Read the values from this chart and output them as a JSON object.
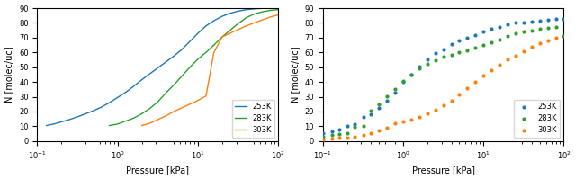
{
  "left": {
    "blue": {
      "pressure": [
        0.13,
        0.16,
        0.2,
        0.25,
        0.32,
        0.4,
        0.5,
        0.63,
        0.79,
        1.0,
        1.26,
        1.58,
        2.0,
        2.51,
        3.16,
        3.98,
        5.01,
        6.31,
        7.94,
        10.0,
        12.6,
        15.8,
        20.0,
        25.1,
        31.6,
        39.8,
        50.1,
        63.1,
        79.4,
        100.0
      ],
      "N": [
        10.5,
        11.5,
        13.0,
        14.5,
        16.5,
        18.5,
        20.5,
        23.0,
        26.0,
        29.5,
        33.0,
        37.0,
        41.5,
        45.5,
        49.5,
        53.5,
        57.5,
        62.0,
        67.5,
        73.0,
        78.0,
        81.5,
        84.5,
        86.5,
        88.0,
        89.0,
        89.5,
        90.0,
        90.0,
        90.0
      ]
    },
    "green": {
      "pressure": [
        0.79,
        1.0,
        1.26,
        1.58,
        2.0,
        2.51,
        3.16,
        3.98,
        5.01,
        6.31,
        7.94,
        10.0,
        12.6,
        15.8,
        20.0,
        25.1,
        31.6,
        39.8,
        50.1,
        63.1,
        79.4,
        100.0
      ],
      "N": [
        10.5,
        11.5,
        13.5,
        15.5,
        18.5,
        22.0,
        26.5,
        32.5,
        38.0,
        44.0,
        50.0,
        55.5,
        60.0,
        65.0,
        70.5,
        75.0,
        79.5,
        83.5,
        86.0,
        87.5,
        88.5,
        89.0
      ]
    },
    "orange": {
      "pressure": [
        2.0,
        2.51,
        3.16,
        3.98,
        5.01,
        6.31,
        7.94,
        10.0,
        12.6,
        15.8,
        20.0,
        25.1,
        31.6,
        39.8,
        50.1,
        63.1,
        79.4,
        100.0
      ],
      "N": [
        10.5,
        12.0,
        14.5,
        17.0,
        20.0,
        22.5,
        25.0,
        27.5,
        30.5,
        60.0,
        70.5,
        73.0,
        75.5,
        78.0,
        80.0,
        82.0,
        84.0,
        85.5
      ]
    }
  },
  "right": {
    "blue": {
      "pressure": [
        0.1,
        0.13,
        0.16,
        0.2,
        0.25,
        0.32,
        0.4,
        0.5,
        0.63,
        0.79,
        1.0,
        1.26,
        1.58,
        2.0,
        2.51,
        3.16,
        3.98,
        5.01,
        6.31,
        7.94,
        10.0,
        12.6,
        15.8,
        20.0,
        25.1,
        31.6,
        39.8,
        50.1,
        63.1,
        79.4,
        100.0
      ],
      "N": [
        5.5,
        6.5,
        7.5,
        10.5,
        11.5,
        16.5,
        18.0,
        22.5,
        27.5,
        33.0,
        40.0,
        45.0,
        50.5,
        55.0,
        59.5,
        62.0,
        65.5,
        68.0,
        70.0,
        72.0,
        74.0,
        76.0,
        77.5,
        79.0,
        80.0,
        80.5,
        81.0,
        81.5,
        82.0,
        82.5,
        83.0
      ]
    },
    "green": {
      "pressure": [
        0.1,
        0.13,
        0.16,
        0.2,
        0.25,
        0.32,
        0.4,
        0.5,
        0.63,
        0.79,
        1.0,
        1.26,
        1.58,
        2.0,
        2.51,
        3.16,
        3.98,
        5.01,
        6.31,
        7.94,
        10.0,
        12.6,
        15.8,
        20.0,
        25.1,
        31.6,
        39.8,
        50.1,
        63.1,
        79.4,
        100.0
      ],
      "N": [
        3.0,
        4.0,
        5.0,
        5.5,
        9.5,
        10.5,
        20.5,
        25.0,
        30.5,
        35.5,
        40.5,
        45.0,
        49.0,
        52.0,
        54.5,
        57.0,
        58.5,
        60.0,
        61.5,
        63.0,
        65.0,
        67.0,
        69.0,
        71.0,
        73.0,
        74.0,
        75.0,
        76.0,
        76.5,
        77.0,
        71.0
      ]
    },
    "orange": {
      "pressure": [
        0.1,
        0.13,
        0.16,
        0.2,
        0.25,
        0.32,
        0.4,
        0.5,
        0.63,
        0.79,
        1.0,
        1.26,
        1.58,
        2.0,
        2.51,
        3.16,
        3.98,
        5.01,
        6.31,
        7.94,
        10.0,
        12.6,
        15.8,
        20.0,
        25.1,
        31.6,
        39.8,
        50.1,
        63.1,
        79.4
      ],
      "N": [
        1.0,
        1.5,
        2.0,
        2.5,
        3.0,
        4.0,
        5.5,
        7.0,
        9.0,
        12.0,
        13.5,
        14.5,
        16.5,
        18.5,
        21.0,
        24.5,
        27.5,
        31.5,
        36.0,
        40.0,
        44.5,
        48.0,
        51.5,
        55.0,
        58.0,
        61.0,
        64.0,
        66.0,
        68.0,
        70.0
      ]
    }
  },
  "colors": {
    "blue": "#1f77b4",
    "green": "#2ca02c",
    "orange": "#ff7f0e"
  },
  "labels": {
    "blue": "253K",
    "green": "283K",
    "orange": "303K"
  },
  "xlim": [
    0.1,
    100
  ],
  "ylim": [
    0,
    90
  ],
  "yticks": [
    0,
    10,
    20,
    30,
    40,
    50,
    60,
    70,
    80,
    90
  ],
  "xlabel": "Pressure [kPa]",
  "ylabel": "N [molec/uc]"
}
